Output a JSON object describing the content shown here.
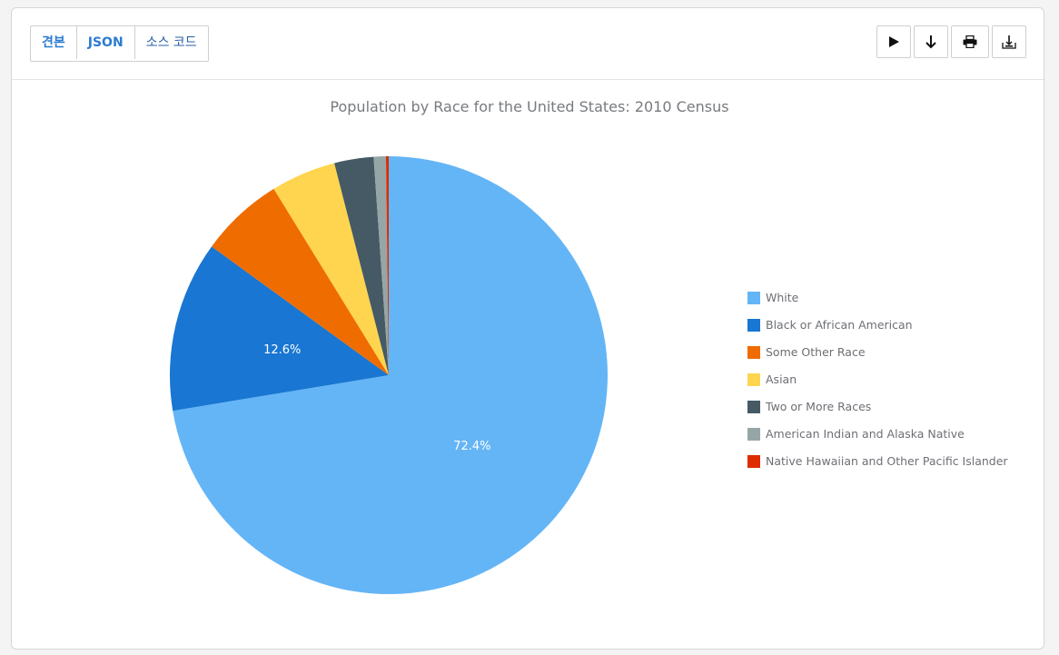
{
  "toolbar": {
    "tabs": [
      "견본",
      "JSON",
      "소스 코드"
    ],
    "actions": [
      {
        "name": "play-icon"
      },
      {
        "name": "download-arrow-icon"
      },
      {
        "name": "print-icon"
      },
      {
        "name": "export-icon"
      }
    ]
  },
  "chart_data": {
    "type": "pie",
    "title": "Population by Race for the United States: 2010 Census",
    "legend_position": "right",
    "start_angle_deg": 0,
    "direction": "clockwise",
    "slices": [
      {
        "label": "White",
        "value": 72.4,
        "data_label": "72.4%",
        "color": "#64b5f6"
      },
      {
        "label": "Black or African American",
        "value": 12.6,
        "data_label": "12.6%",
        "color": "#1976d2"
      },
      {
        "label": "Some Other Race",
        "value": 6.2,
        "data_label": "",
        "color": "#ef6c00"
      },
      {
        "label": "Asian",
        "value": 4.8,
        "data_label": "",
        "color": "#ffd54f"
      },
      {
        "label": "Two or More Races",
        "value": 2.9,
        "data_label": "",
        "color": "#455a64"
      },
      {
        "label": "American Indian and Alaska Native",
        "value": 0.9,
        "data_label": "",
        "color": "#96a6a6"
      },
      {
        "label": "Native Hawaiian and Other Pacific Islander",
        "value": 0.2,
        "data_label": "",
        "color": "#dd2c00"
      }
    ]
  }
}
